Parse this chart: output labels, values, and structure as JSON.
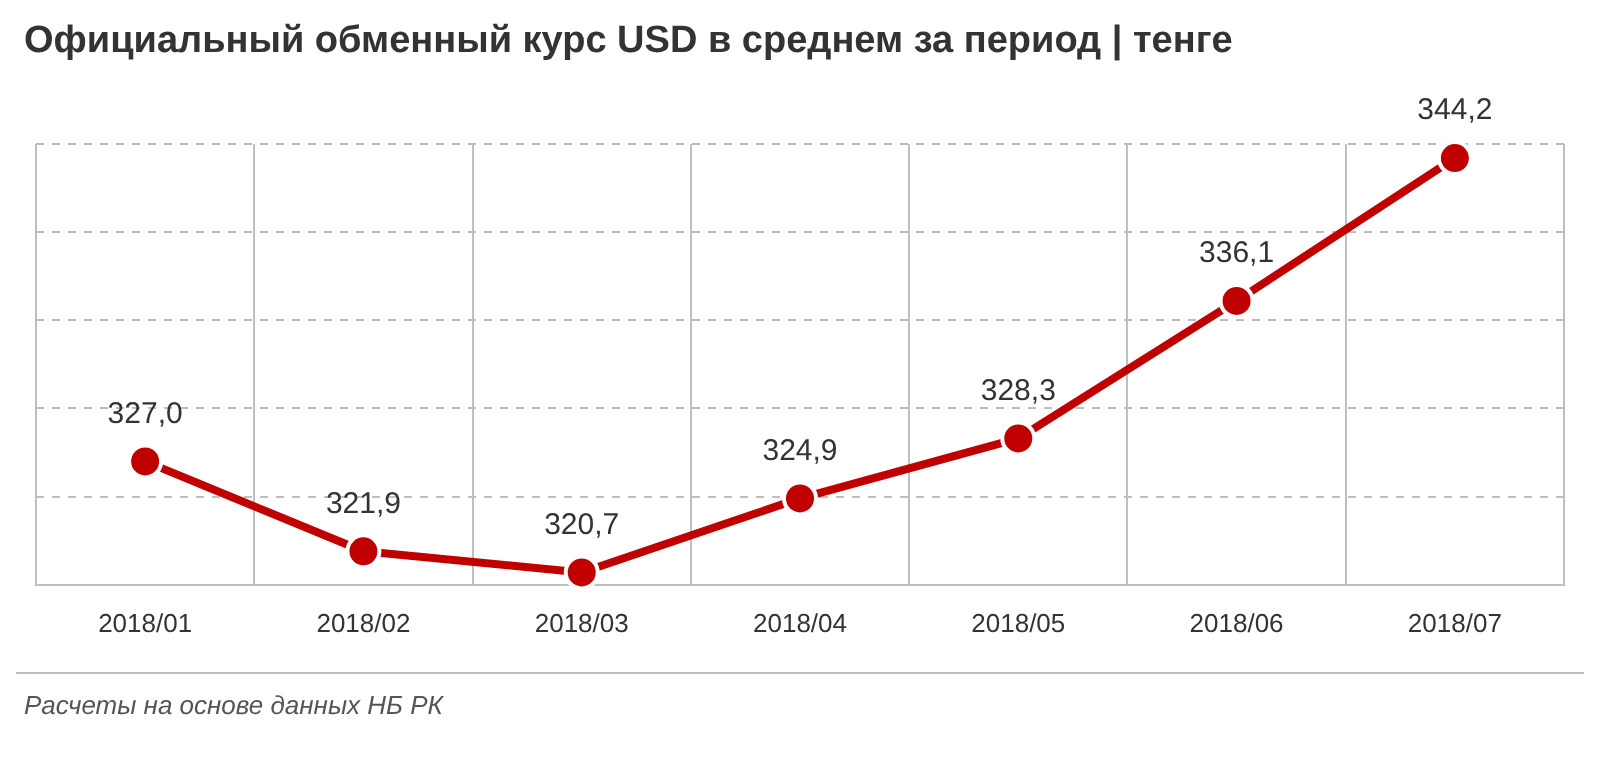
{
  "chart_data": {
    "type": "line",
    "title": "Официальный обменный курс USD в среднем за период | тенге",
    "categories": [
      "2018/01",
      "2018/02",
      "2018/03",
      "2018/04",
      "2018/05",
      "2018/06",
      "2018/07"
    ],
    "series": [
      {
        "color": "#c00000",
        "values": [
          327.0,
          321.9,
          320.7,
          324.9,
          328.3,
          336.1,
          344.2
        ],
        "value_labels": [
          "327,0",
          "321,9",
          "320,7",
          "324,9",
          "328,3",
          "336,1",
          "344,2"
        ]
      }
    ],
    "tick_labels": "x",
    "grid": true,
    "marker": "circle",
    "line_style": "solid",
    "annotations": [
      "Расчеты на основе данных НБ РК"
    ]
  }
}
